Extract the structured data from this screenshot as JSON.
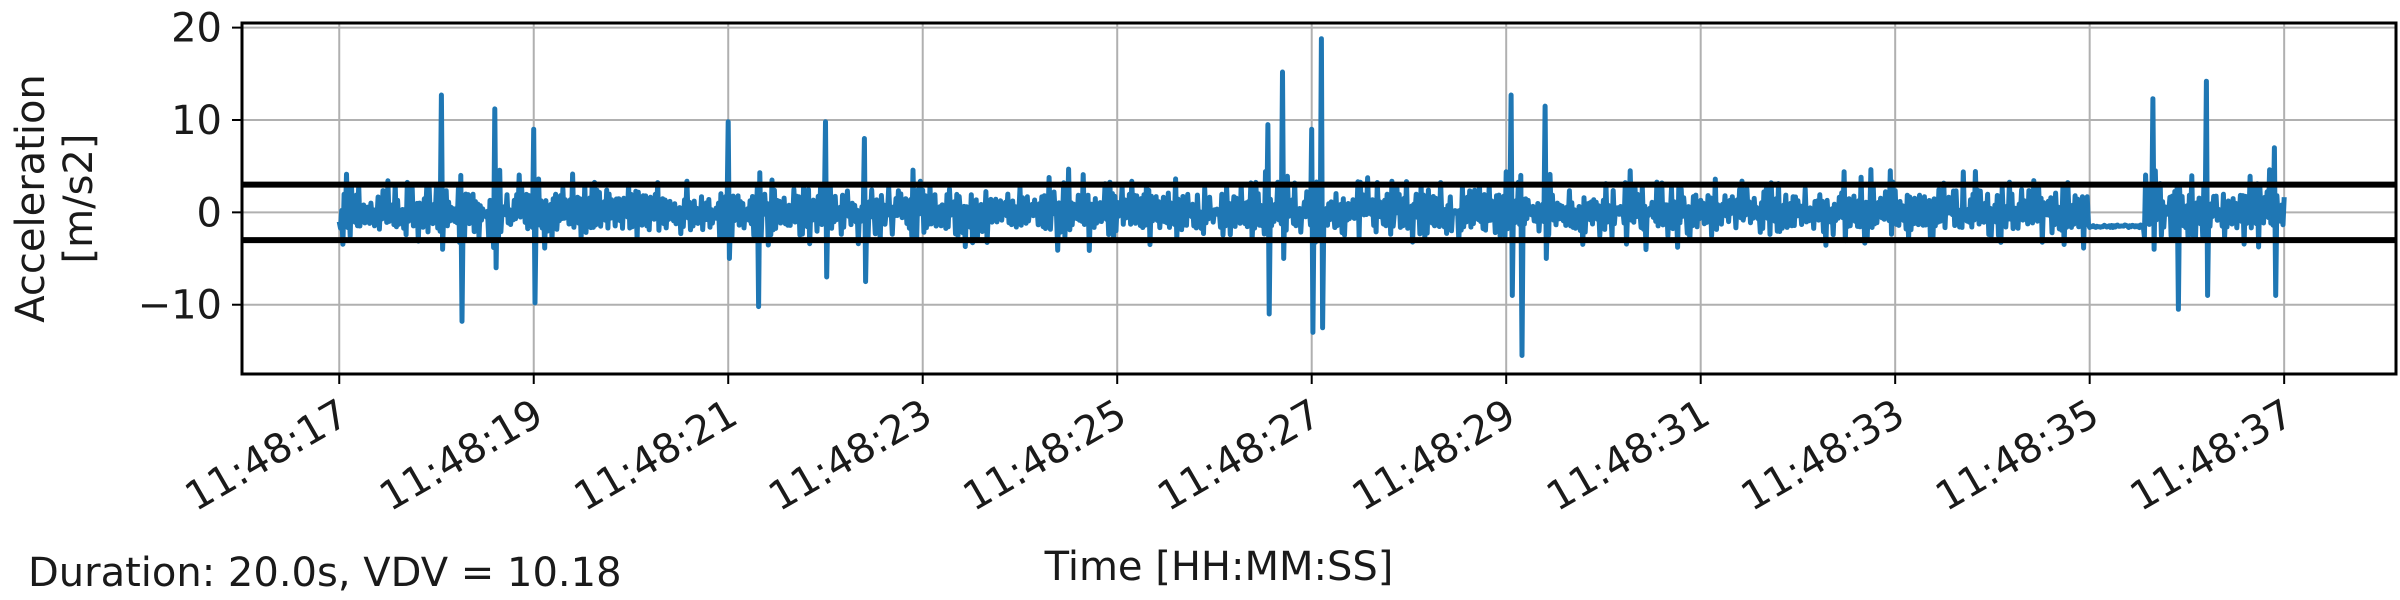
{
  "chart_data": {
    "type": "line",
    "title": "",
    "xlabel": "Time [HH:MM:SS]",
    "ylabel": "Acceleration",
    "ylabel_unit": "[m/s2]",
    "x_ticks": [
      "11:48:17",
      "11:48:19",
      "11:48:21",
      "11:48:23",
      "11:48:25",
      "11:48:27",
      "11:48:29",
      "11:48:31",
      "11:48:33",
      "11:48:35",
      "11:48:37"
    ],
    "y_ticks": [
      20,
      10,
      0,
      -10
    ],
    "y_tick_labels": [
      "20",
      "10",
      "0",
      "−10"
    ],
    "xlim_seconds_after_11_48_16": [
      0.0,
      22.15
    ],
    "ylim": [
      -17.5,
      20.5
    ],
    "grid": true,
    "legend": "none",
    "series": [
      {
        "color": "#1f77b4",
        "start_time": "11:48:17.00",
        "end_time": "11:48:37.00",
        "bursts": [
          {
            "t": 18.05,
            "max": 12.7,
            "min": -4.0
          },
          {
            "t": 18.25,
            "max": 4.0,
            "min": -11.8
          },
          {
            "t": 18.6,
            "max": 11.2,
            "min": -6.0
          },
          {
            "t": 19.0,
            "max": 9.0,
            "min": -9.8
          },
          {
            "t": 21.0,
            "max": 9.8,
            "min": -5.0
          },
          {
            "t": 21.3,
            "max": 3.0,
            "min": -10.2
          },
          {
            "t": 22.0,
            "max": 9.8,
            "min": -7.0
          },
          {
            "t": 22.4,
            "max": 8.0,
            "min": -7.5
          },
          {
            "t": 26.55,
            "max": 9.5,
            "min": -11.0
          },
          {
            "t": 26.7,
            "max": 15.2,
            "min": -5.0
          },
          {
            "t": 27.0,
            "max": 9.0,
            "min": -13.0
          },
          {
            "t": 27.1,
            "max": 18.8,
            "min": -12.5
          },
          {
            "t": 29.05,
            "max": 12.7,
            "min": -9.0
          },
          {
            "t": 29.15,
            "max": 4.0,
            "min": -15.5
          },
          {
            "t": 29.4,
            "max": 11.5,
            "min": -5.0
          },
          {
            "t": 35.65,
            "max": 12.3,
            "min": -4.0
          },
          {
            "t": 35.9,
            "max": 3.0,
            "min": -10.5
          },
          {
            "t": 36.2,
            "max": 14.2,
            "min": -9.0
          },
          {
            "t": 36.9,
            "max": 7.0,
            "min": -9.0
          }
        ],
        "quiet_intervals": [
          {
            "from": 35.0,
            "to": 35.55,
            "value": -1.5
          }
        ]
      }
    ],
    "reference_lines": [
      {
        "y": 3.0,
        "color": "#000000"
      },
      {
        "y": -3.0,
        "color": "#000000"
      }
    ]
  },
  "footnote": "Duration: 20.0s, VDV = 10.18"
}
